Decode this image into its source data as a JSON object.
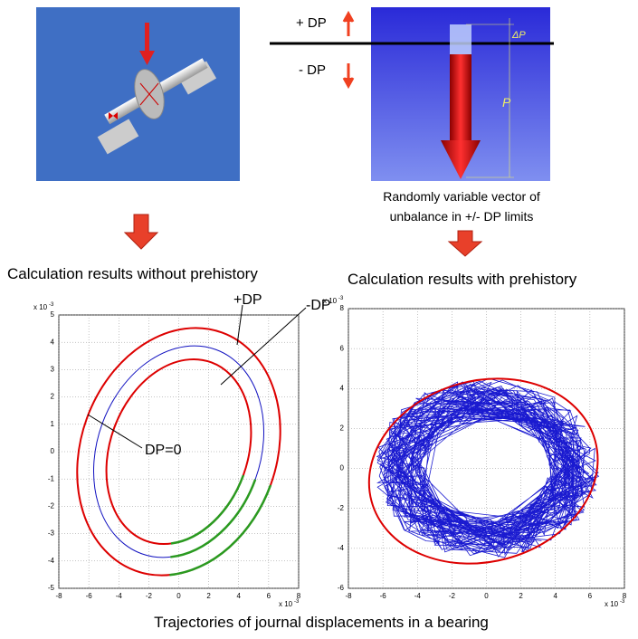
{
  "labels": {
    "plus_dp": "+ DP",
    "minus_dp": "- DP",
    "delta_p": "ΔP",
    "p": "P",
    "caption": [
      "Randomly variable vector of",
      "unbalance in +/- DP limits"
    ]
  },
  "left_title": "Calculation results without  prehistory",
  "right_title": "Calculation results with  prehistory",
  "plots": [
    {
      "xlim": [
        -8,
        8
      ],
      "ylim": [
        -5,
        5
      ],
      "xticks": [
        -8,
        -6,
        -4,
        -2,
        0,
        2,
        4,
        6,
        8
      ],
      "yticks": [
        -5,
        -4,
        -3,
        -2,
        -1,
        0,
        1,
        2,
        3,
        4,
        5
      ],
      "scale_base": "x 10",
      "scale_exponent": "-3",
      "annotations": [
        "+DP",
        "-DP",
        "DP=0"
      ]
    },
    {
      "xlim": [
        -8,
        8
      ],
      "ylim": [
        -6,
        8
      ],
      "xticks": [
        -8,
        -6,
        -4,
        -2,
        0,
        2,
        4,
        6,
        8
      ],
      "yticks": [
        -6,
        -4,
        -2,
        0,
        2,
        4,
        6,
        8
      ],
      "scale_base": "x 10",
      "scale_exponent": "-3"
    }
  ],
  "footer": "Trajectories of journal displacements in a bearing"
}
